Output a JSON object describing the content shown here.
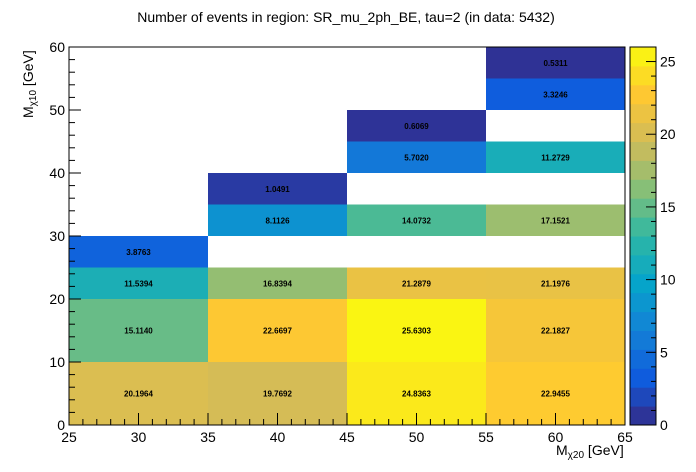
{
  "chart_data": {
    "type": "heatmap",
    "title": "Number of events in region: SR_mu_2ph_BE, tau=2 (in data: 5432)",
    "xlabel": {
      "main": "M",
      "sub": "χ20",
      "unit": " [GeV]"
    },
    "ylabel": {
      "main": "M",
      "sub": "χ10",
      "unit": " [GeV]"
    },
    "xlim": [
      25,
      65
    ],
    "ylim": [
      0,
      60
    ],
    "zlim": [
      0,
      26
    ],
    "x_ticks": [
      25,
      30,
      35,
      40,
      45,
      50,
      55,
      60,
      65
    ],
    "y_ticks": [
      0,
      10,
      20,
      30,
      40,
      50,
      60
    ],
    "z_ticks": [
      0,
      5,
      10,
      15,
      20,
      25
    ],
    "colormap": [
      "#352a87",
      "#0f5cdd",
      "#1481d6",
      "#06a4ca",
      "#2eb7a4",
      "#87bf77",
      "#d1bb59",
      "#fec832",
      "#f9fb0e"
    ],
    "cells": [
      {
        "x": [
          25,
          35
        ],
        "y": [
          0,
          10
        ],
        "value": 20.1964,
        "label": "20.1964"
      },
      {
        "x": [
          35,
          45
        ],
        "y": [
          0,
          10
        ],
        "value": 19.7692,
        "label": "19.7692"
      },
      {
        "x": [
          45,
          55
        ],
        "y": [
          0,
          10
        ],
        "value": 24.8363,
        "label": "24.8363"
      },
      {
        "x": [
          55,
          65
        ],
        "y": [
          0,
          10
        ],
        "value": 22.9455,
        "label": "22.9455"
      },
      {
        "x": [
          25,
          35
        ],
        "y": [
          10,
          20
        ],
        "value": 15.114,
        "label": "15.1140"
      },
      {
        "x": [
          35,
          45
        ],
        "y": [
          10,
          20
        ],
        "value": 22.6697,
        "label": "22.6697"
      },
      {
        "x": [
          45,
          55
        ],
        "y": [
          10,
          20
        ],
        "value": 25.6303,
        "label": "25.6303"
      },
      {
        "x": [
          55,
          65
        ],
        "y": [
          10,
          20
        ],
        "value": 22.1827,
        "label": "22.1827"
      },
      {
        "x": [
          25,
          35
        ],
        "y": [
          20,
          25
        ],
        "value": 11.5394,
        "label": "11.5394"
      },
      {
        "x": [
          35,
          45
        ],
        "y": [
          20,
          25
        ],
        "value": 16.8394,
        "label": "16.8394"
      },
      {
        "x": [
          45,
          55
        ],
        "y": [
          20,
          25
        ],
        "value": 21.2879,
        "label": "21.2879"
      },
      {
        "x": [
          55,
          65
        ],
        "y": [
          20,
          25
        ],
        "value": 21.1976,
        "label": "21.1976"
      },
      {
        "x": [
          25,
          35
        ],
        "y": [
          25,
          30
        ],
        "value": 3.8763,
        "label": "3.8763"
      },
      {
        "x": [
          35,
          45
        ],
        "y": [
          30,
          35
        ],
        "value": 8.1126,
        "label": "8.1126"
      },
      {
        "x": [
          45,
          55
        ],
        "y": [
          30,
          35
        ],
        "value": 14.0732,
        "label": "14.0732"
      },
      {
        "x": [
          55,
          65
        ],
        "y": [
          30,
          35
        ],
        "value": 17.1521,
        "label": "17.1521"
      },
      {
        "x": [
          35,
          45
        ],
        "y": [
          35,
          40
        ],
        "value": 1.0491,
        "label": "1.0491"
      },
      {
        "x": [
          45,
          55
        ],
        "y": [
          40,
          45
        ],
        "value": 5.702,
        "label": "5.7020"
      },
      {
        "x": [
          55,
          65
        ],
        "y": [
          40,
          45
        ],
        "value": 11.2729,
        "label": "11.2729"
      },
      {
        "x": [
          45,
          55
        ],
        "y": [
          45,
          50
        ],
        "value": 0.6069,
        "label": "0.6069"
      },
      {
        "x": [
          55,
          65
        ],
        "y": [
          50,
          55
        ],
        "value": 3.3246,
        "label": "3.3246"
      },
      {
        "x": [
          55,
          65
        ],
        "y": [
          55,
          60
        ],
        "value": 0.5311,
        "label": "0.5311"
      }
    ],
    "grid": false,
    "legend": "colorbar-right"
  }
}
